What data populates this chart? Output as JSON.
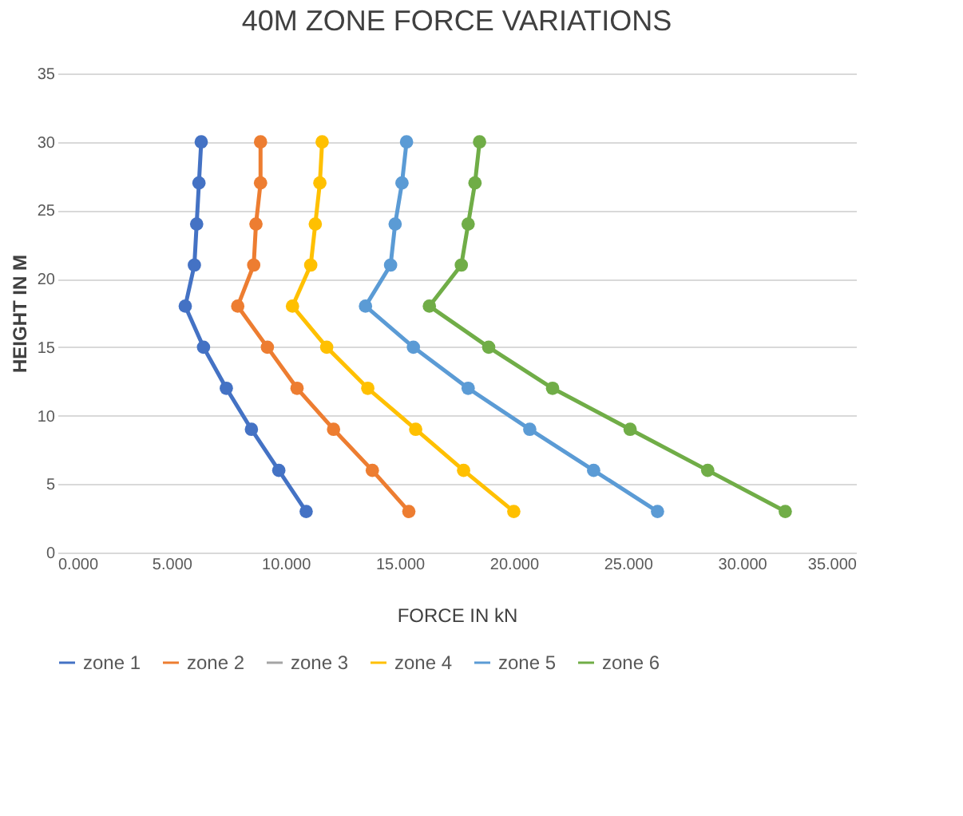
{
  "chart_data": {
    "type": "line",
    "title": "40M ZONE FORCE VARIATIONS",
    "xlabel": "FORCE IN kN",
    "ylabel": "HEIGHT IN M",
    "xlim": [
      0,
      35
    ],
    "xticks": [
      {
        "value": 0,
        "label": "0.000"
      },
      {
        "value": 5,
        "label": "5.000"
      },
      {
        "value": 10,
        "label": "10.000"
      },
      {
        "value": 15,
        "label": "15.000"
      },
      {
        "value": 20,
        "label": "20.000"
      },
      {
        "value": 25,
        "label": "25.000"
      },
      {
        "value": 30,
        "label": "30.000"
      },
      {
        "value": 35,
        "label": "35.000"
      }
    ],
    "ylim": [
      0,
      35
    ],
    "yticks": [
      0,
      5,
      10,
      15,
      20,
      25,
      30,
      35
    ],
    "grid": "y",
    "legend": "bottom",
    "marker": "circle",
    "line_style": "solid",
    "series": [
      {
        "name": "zone 1",
        "color": "#4472c4",
        "x": [
          10.9,
          9.7,
          8.5,
          7.4,
          6.4,
          5.6,
          6.0,
          6.1,
          6.2,
          6.3
        ],
        "values": [
          3,
          6,
          9,
          12,
          15,
          18,
          21,
          24,
          27,
          30
        ]
      },
      {
        "name": "zone 2",
        "color": "#ed7d31",
        "x": [
          15.4,
          13.8,
          12.1,
          10.5,
          9.2,
          7.9,
          8.6,
          8.7,
          8.9,
          8.9
        ],
        "values": [
          3,
          6,
          9,
          12,
          15,
          18,
          21,
          24,
          27,
          30
        ]
      },
      {
        "name": "zone 3",
        "color": "#a5a5a5",
        "x": [
          null,
          null,
          null,
          null,
          null,
          null,
          null,
          null,
          null,
          null
        ],
        "values": [
          null,
          null,
          null,
          null,
          null,
          null,
          null,
          null,
          null,
          null
        ]
      },
      {
        "name": "zone 4",
        "color": "#ffc000",
        "x": [
          20.0,
          17.8,
          15.7,
          13.6,
          11.8,
          10.3,
          11.1,
          11.3,
          11.5,
          11.6
        ],
        "values": [
          3,
          6,
          9,
          12,
          15,
          18,
          21,
          24,
          27,
          30
        ]
      },
      {
        "name": "zone 5",
        "color": "#5b9bd5",
        "x": [
          26.3,
          23.5,
          20.7,
          18.0,
          15.6,
          13.5,
          14.6,
          14.8,
          15.1,
          15.3
        ],
        "values": [
          3,
          6,
          9,
          12,
          15,
          18,
          21,
          24,
          27,
          30
        ]
      },
      {
        "name": "zone 6",
        "color": "#70ad47",
        "x": [
          31.9,
          28.5,
          25.1,
          21.7,
          18.9,
          16.3,
          17.7,
          18.0,
          18.3,
          18.5
        ],
        "values": [
          3,
          6,
          9,
          12,
          15,
          18,
          21,
          24,
          27,
          30
        ]
      }
    ]
  }
}
